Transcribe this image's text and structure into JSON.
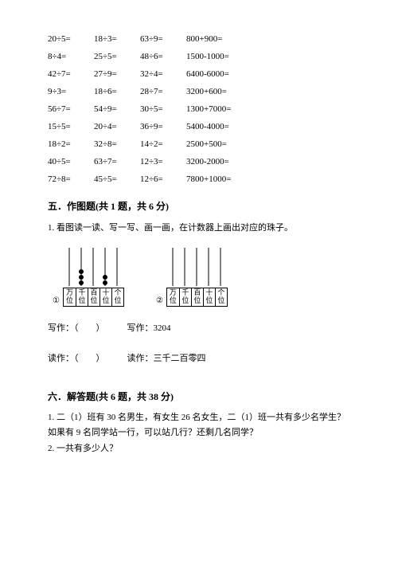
{
  "equations": [
    [
      "20÷5=",
      "18÷3=",
      "63÷9=",
      "800+900="
    ],
    [
      "8÷4=",
      "25÷5=",
      "48÷6=",
      "1500-1000="
    ],
    [
      "42÷7=",
      "27÷9=",
      "32÷4=",
      "6400-6000="
    ],
    [
      "9÷3=",
      "18÷6=",
      "28÷7=",
      "3200+600="
    ],
    [
      "56÷7=",
      "54÷9=",
      "30÷5=",
      "1300+7000="
    ],
    [
      "15÷5=",
      "20÷4=",
      "36÷9=",
      "5400-4000="
    ],
    [
      "18÷2=",
      "32÷8=",
      "14÷2=",
      "2500+500="
    ],
    [
      "40÷5=",
      "63÷7=",
      "12÷3=",
      "3200-2000="
    ],
    [
      "72÷8=",
      "45÷5=",
      "12÷6=",
      "7800+1000="
    ]
  ],
  "section5_title": "五．作图题(共 1 题，共 6 分)",
  "q5_1": "1. 看图读一读、写一写、画一画，在计数器上画出对应的珠子。",
  "abacus_labels_top": [
    "万",
    "千",
    "百",
    "十",
    "个"
  ],
  "abacus_labels_bot": [
    "位",
    "位",
    "位",
    "位",
    "位"
  ],
  "abacus1_beads": [
    0,
    3,
    0,
    2,
    0
  ],
  "abacus2_beads": [
    0,
    0,
    0,
    0,
    0
  ],
  "circle1": "①",
  "circle2": "②",
  "write1": "写作：（　　）",
  "write2": "写作：3204",
  "read1": "读作：（　　）",
  "read2": "读作：三千二百零四",
  "section6_title": "六．解答题(共 6 题，共 38 分)",
  "q6_1a": "1. 二（1）班有 30 名男生，有女生 26 名女生，二（1）班一共有多少名学生？",
  "q6_1b": "如果有 9 名同学站一行，可以站几行？还剩几名同学？",
  "q6_2": "2. 一共有多少人？"
}
